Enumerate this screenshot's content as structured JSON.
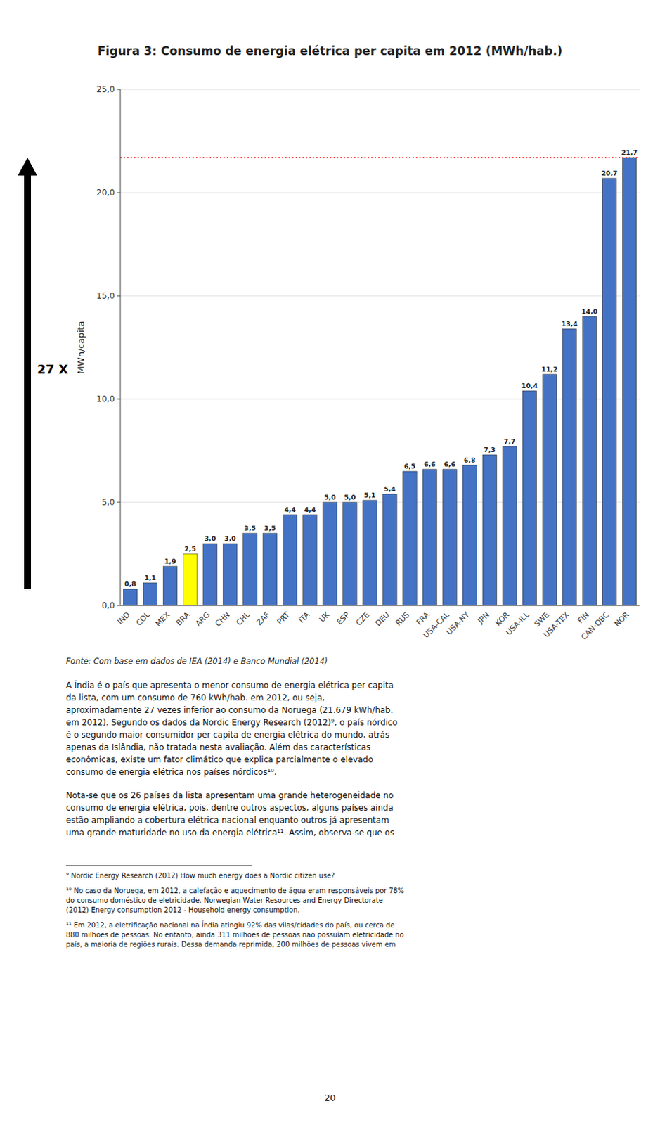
{
  "chart_data": {
    "type": "bar",
    "title": "Figura 3: Consumo de energia elétrica per capita em 2012 (MWh/hab.)",
    "ylabel": "MWh/capita",
    "categories": [
      "IND",
      "COL",
      "MEX",
      "BRA",
      "ARG",
      "CHN",
      "CHL",
      "ZAF",
      "PRT",
      "ITA",
      "UK",
      "ESP",
      "CZE",
      "DEU",
      "RUS",
      "FRA",
      "USA-CAL",
      "USA-NY",
      "JPN",
      "KOR",
      "USA-ILL",
      "SWE",
      "USA-TEX",
      "FIN",
      "CAN-QBC",
      "NOR"
    ],
    "values": [
      0.8,
      1.1,
      1.9,
      2.5,
      3.0,
      3.0,
      3.5,
      3.5,
      4.4,
      4.4,
      5.0,
      5.0,
      5.1,
      5.4,
      6.5,
      6.6,
      6.6,
      6.8,
      7.3,
      7.7,
      10.4,
      11.2,
      13.4,
      14.0,
      20.7,
      21.7
    ],
    "value_labels": [
      "0,8",
      "1,1",
      "1,9",
      "2,5",
      "3,0",
      "3,0",
      "3,5",
      "3,5",
      "4,4",
      "4,4",
      "5,0",
      "5,0",
      "5,1",
      "5,4",
      "6,5",
      "6,6",
      "6,6",
      "6,8",
      "7,3",
      "7,7",
      "10,4",
      "11,2",
      "13,4",
      "14,0",
      "20,7",
      "21,7"
    ],
    "data_labels": true,
    "colors": [
      "#4472C4",
      "#4472C4",
      "#4472C4",
      "#FFFF00",
      "#4472C4",
      "#4472C4",
      "#4472C4",
      "#4472C4",
      "#4472C4",
      "#4472C4",
      "#4472C4",
      "#4472C4",
      "#4472C4",
      "#4472C4",
      "#4472C4",
      "#4472C4",
      "#4472C4",
      "#4472C4",
      "#4472C4",
      "#4472C4",
      "#4472C4",
      "#4472C4",
      "#4472C4",
      "#4472C4",
      "#4472C4",
      "#4472C4"
    ],
    "reference_lines": [
      {
        "value": 21.7,
        "color": "#FF0000"
      }
    ],
    "annotations": [
      "27 X"
    ],
    "ylim": [
      0,
      25
    ],
    "yticks": [
      {
        "value": 0,
        "label": "0,0"
      },
      {
        "value": 5,
        "label": "5,0"
      },
      {
        "value": 10,
        "label": "10,0"
      },
      {
        "value": 15,
        "label": "15,0"
      },
      {
        "value": 20,
        "label": "20,0"
      },
      {
        "value": 25,
        "label": "25,0"
      }
    ],
    "grid": true
  },
  "source_text": "Fonte: Com base em dados de IEA (2014) e Banco Mundial (2014)",
  "body_paragraphs": [
    [
      "A Índia é o país que apresenta o menor consumo de energia elétrica per capita",
      "da lista, com um consumo de 760 kWh/hab. em 2012, ou seja,",
      "aproximadamente 27 vezes inferior ao consumo da Noruega (21.679 kWh/hab.",
      "em 2012). Segundo os dados da Nordic Energy Research (2012)⁹, o país nórdico",
      "é o segundo maior consumidor per capita de energia elétrica do mundo, atrás",
      "apenas da Islândia, não tratada nesta avaliação. Além das características",
      "econômicas, existe um fator climático que explica parcialmente o elevado",
      "consumo de energia elétrica nos países nórdicos¹⁰."
    ],
    [
      "Nota-se que os 26 países da lista apresentam uma grande heterogeneidade no",
      "consumo de energia elétrica, pois, dentre outros aspectos, alguns países ainda",
      "estão ampliando a cobertura elétrica nacional enquanto outros já apresentam",
      "uma grande maturidade no uso da energia elétrica¹¹. Assim, observa-se que os"
    ]
  ],
  "footnotes": [
    [
      "⁹ Nordic Energy Research (2012) How much energy does a Nordic citizen use?"
    ],
    [
      "¹⁰ No caso da Noruega, em 2012, a calefação e aquecimento de água eram responsáveis por 78%",
      "do consumo doméstico de eletricidade. Norwegian Water Resources and Energy Directorate",
      "(2012) Energy consumption 2012 - Household energy consumption."
    ],
    [
      "¹¹ Em 2012, a eletrificação nacional na Índia atingiu 92% das vilas/cidades do país, ou cerca de",
      "880 milhões de pessoas. No entanto, ainda 311 milhões de pessoas não possuíam eletricidade no",
      "país, a maioria de regiões rurais. Dessa demanda reprimida, 200 milhões de pessoas vivem em"
    ]
  ],
  "page_number": "20"
}
